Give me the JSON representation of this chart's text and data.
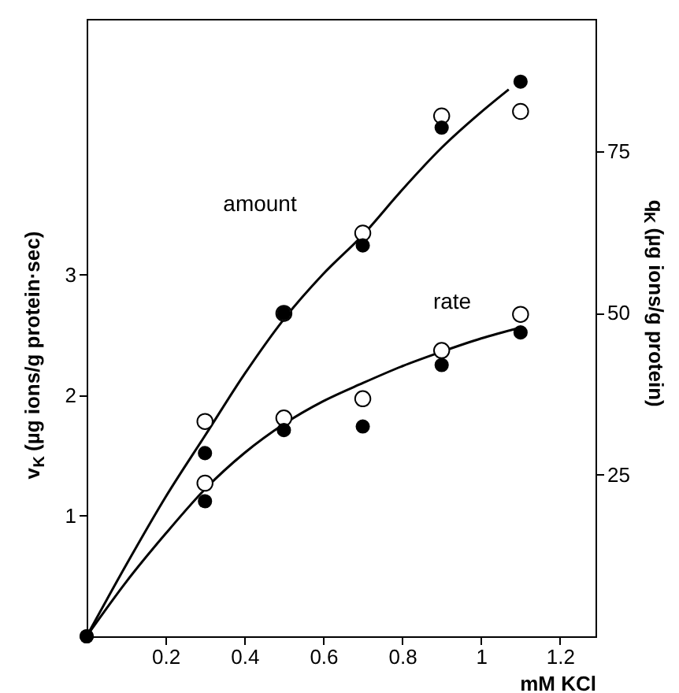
{
  "chart_data": {
    "type": "scatter",
    "xlabel": "mM KCl",
    "ylabel": "v$_{K}$ (µg ions/g protein·sec)",
    "y2label": "q$_{K}$ (µg ions/g protein)",
    "xlim": [
      0,
      1.29
    ],
    "xticks": [
      0.2,
      0.4,
      0.6,
      0.8,
      1,
      1.2
    ],
    "ylim": [
      0,
      5.12
    ],
    "yticks": [
      1,
      2,
      3
    ],
    "y2lim": [
      0,
      95.4
    ],
    "y2ticks": [
      25,
      50,
      75
    ],
    "grid": false,
    "marker": "circle",
    "annotations": [
      "amount",
      "rate"
    ],
    "series": [
      {
        "type": "line",
        "marker": "none",
        "axis": "y",
        "color": "#000000",
        "x": [
          0,
          0.1,
          0.2,
          0.3,
          0.4,
          0.5,
          0.6,
          0.7,
          0.8,
          0.9,
          1.0,
          1.1
        ],
        "values": [
          0,
          0.45,
          0.85,
          1.22,
          1.52,
          1.76,
          1.95,
          2.1,
          2.24,
          2.36,
          2.47,
          2.56
        ]
      },
      {
        "type": "scatter",
        "axis": "y",
        "color": "#ffffff",
        "x": [
          0.3,
          0.5,
          0.7,
          0.9,
          1.1
        ],
        "values": [
          1.27,
          1.81,
          1.97,
          2.37,
          2.67
        ]
      },
      {
        "type": "scatter",
        "axis": "y",
        "color": "#000000",
        "x": [
          0,
          0.3,
          0.5,
          0.7,
          0.9,
          1.1
        ],
        "values": [
          0,
          1.12,
          1.71,
          1.74,
          2.25,
          2.52
        ]
      },
      {
        "type": "line",
        "marker": "none",
        "axis": "y2",
        "color": "#000000",
        "x": [
          0,
          0.1,
          0.2,
          0.3,
          0.4,
          0.5,
          0.6,
          0.7,
          0.8,
          0.9,
          1.0,
          1.07
        ],
        "values": [
          0,
          11,
          21.5,
          31,
          40.5,
          49,
          56,
          62,
          69,
          75.5,
          81,
          84.5
        ]
      },
      {
        "type": "scatter",
        "axis": "y2",
        "color": "#ffffff",
        "x": [
          0.3,
          0.5,
          0.7,
          0.9,
          1.1
        ],
        "values": [
          33.2,
          49.9,
          62.3,
          80.4,
          81.1
        ]
      },
      {
        "type": "scatter",
        "axis": "y2",
        "color": "#000000",
        "x": [
          0,
          0.3,
          0.5,
          0.7,
          0.9,
          1.1
        ],
        "values": [
          0,
          28.3,
          49.9,
          60.4,
          78.6,
          85.7
        ]
      }
    ]
  }
}
